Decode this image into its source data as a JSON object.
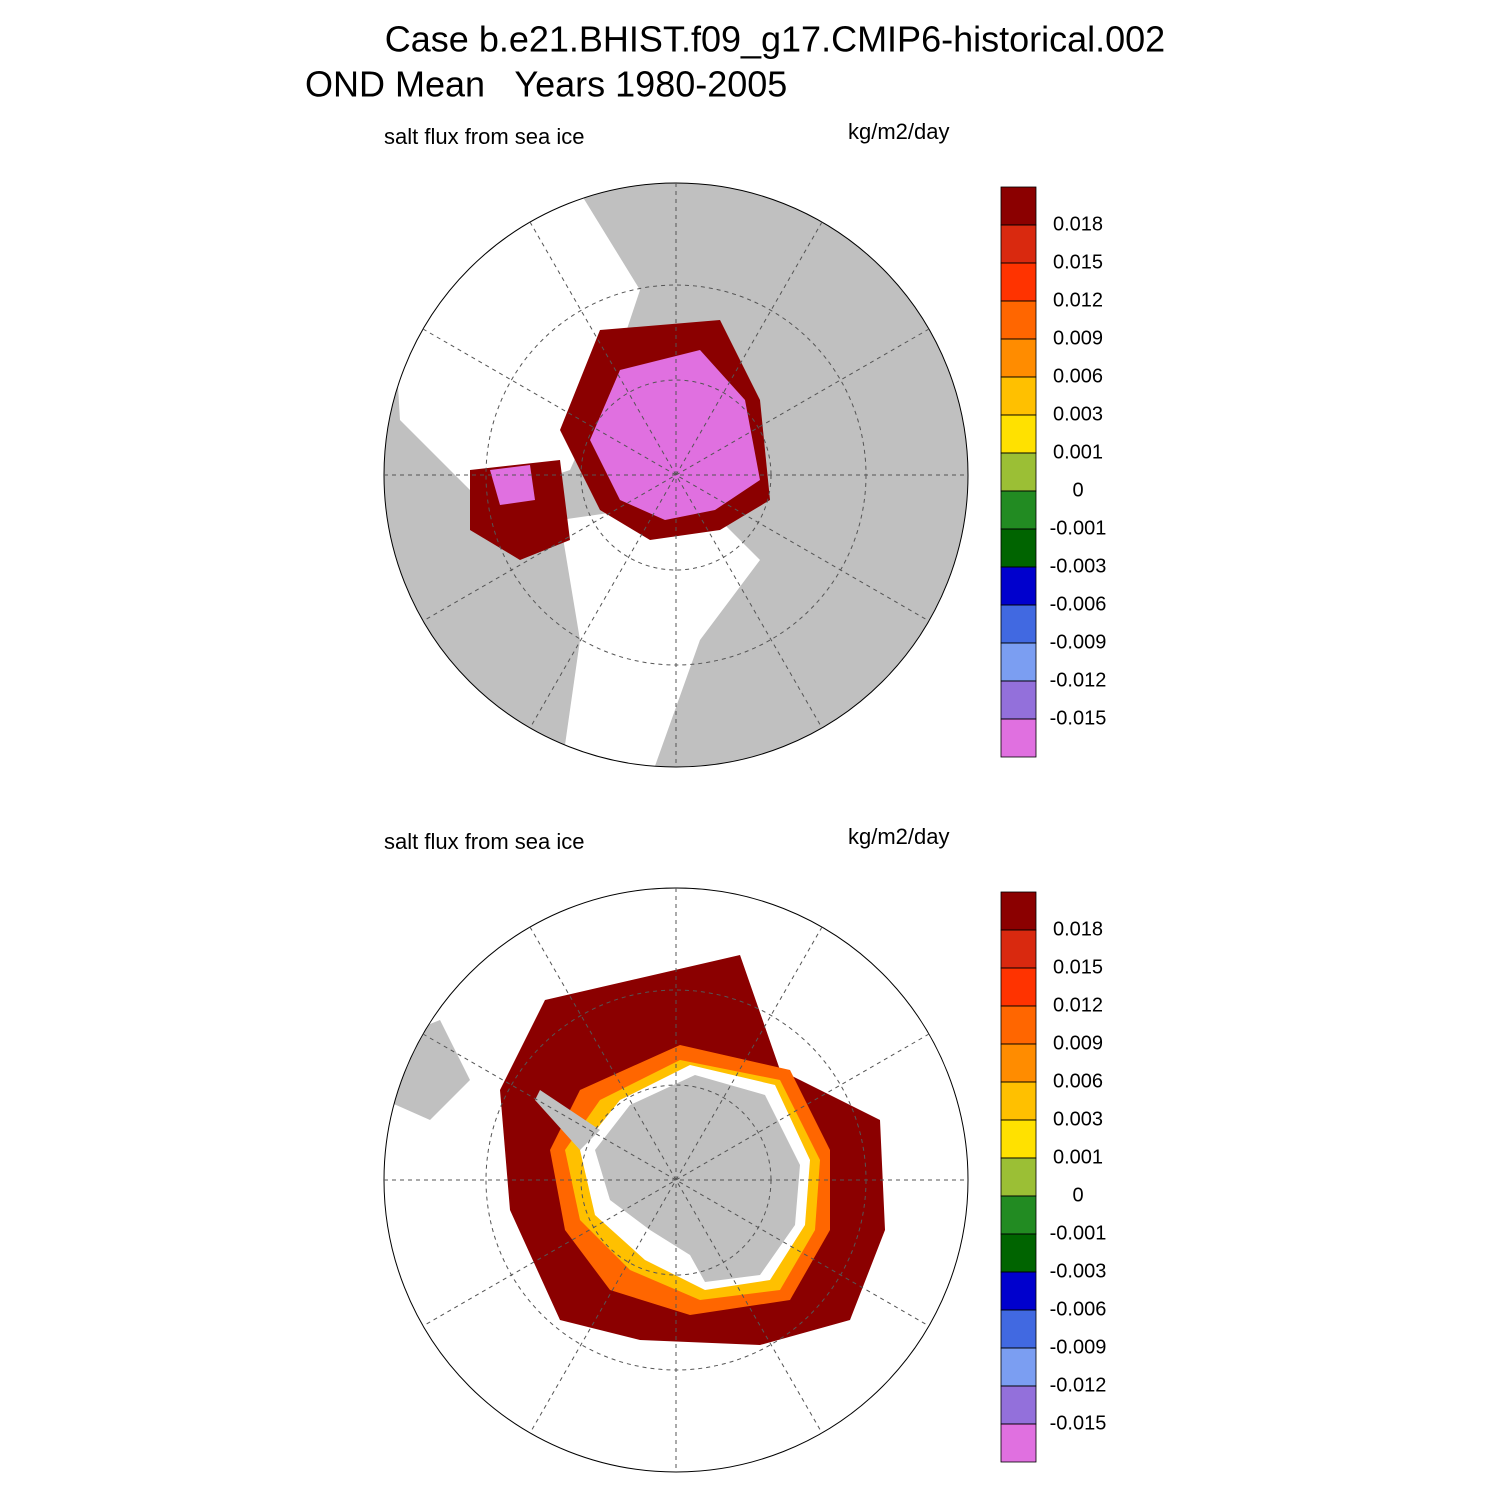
{
  "header": {
    "title": "Case b.e21.BHIST.f09_g17.CMIP6-historical.002",
    "subtitle": "OND Mean   Years 1980-2005"
  },
  "panels": [
    {
      "label": "salt flux from sea ice",
      "units": "kg/m2/day"
    },
    {
      "label": "salt flux from sea ice",
      "units": "kg/m2/day"
    }
  ],
  "colorbar": {
    "colors": [
      "#8b0000",
      "#d9290f",
      "#ff3300",
      "#ff6600",
      "#ff8c00",
      "#ffc000",
      "#ffe100",
      "#9bbf35",
      "#228b22",
      "#006400",
      "#0000cd",
      "#4169e1",
      "#7b9ef2",
      "#9370db",
      "#e070e0"
    ],
    "levels": [
      0.018,
      0.015,
      0.012,
      0.009,
      0.006,
      0.003,
      0.001,
      0,
      -0.001,
      -0.003,
      -0.006,
      -0.009,
      -0.012,
      -0.015
    ]
  }
}
